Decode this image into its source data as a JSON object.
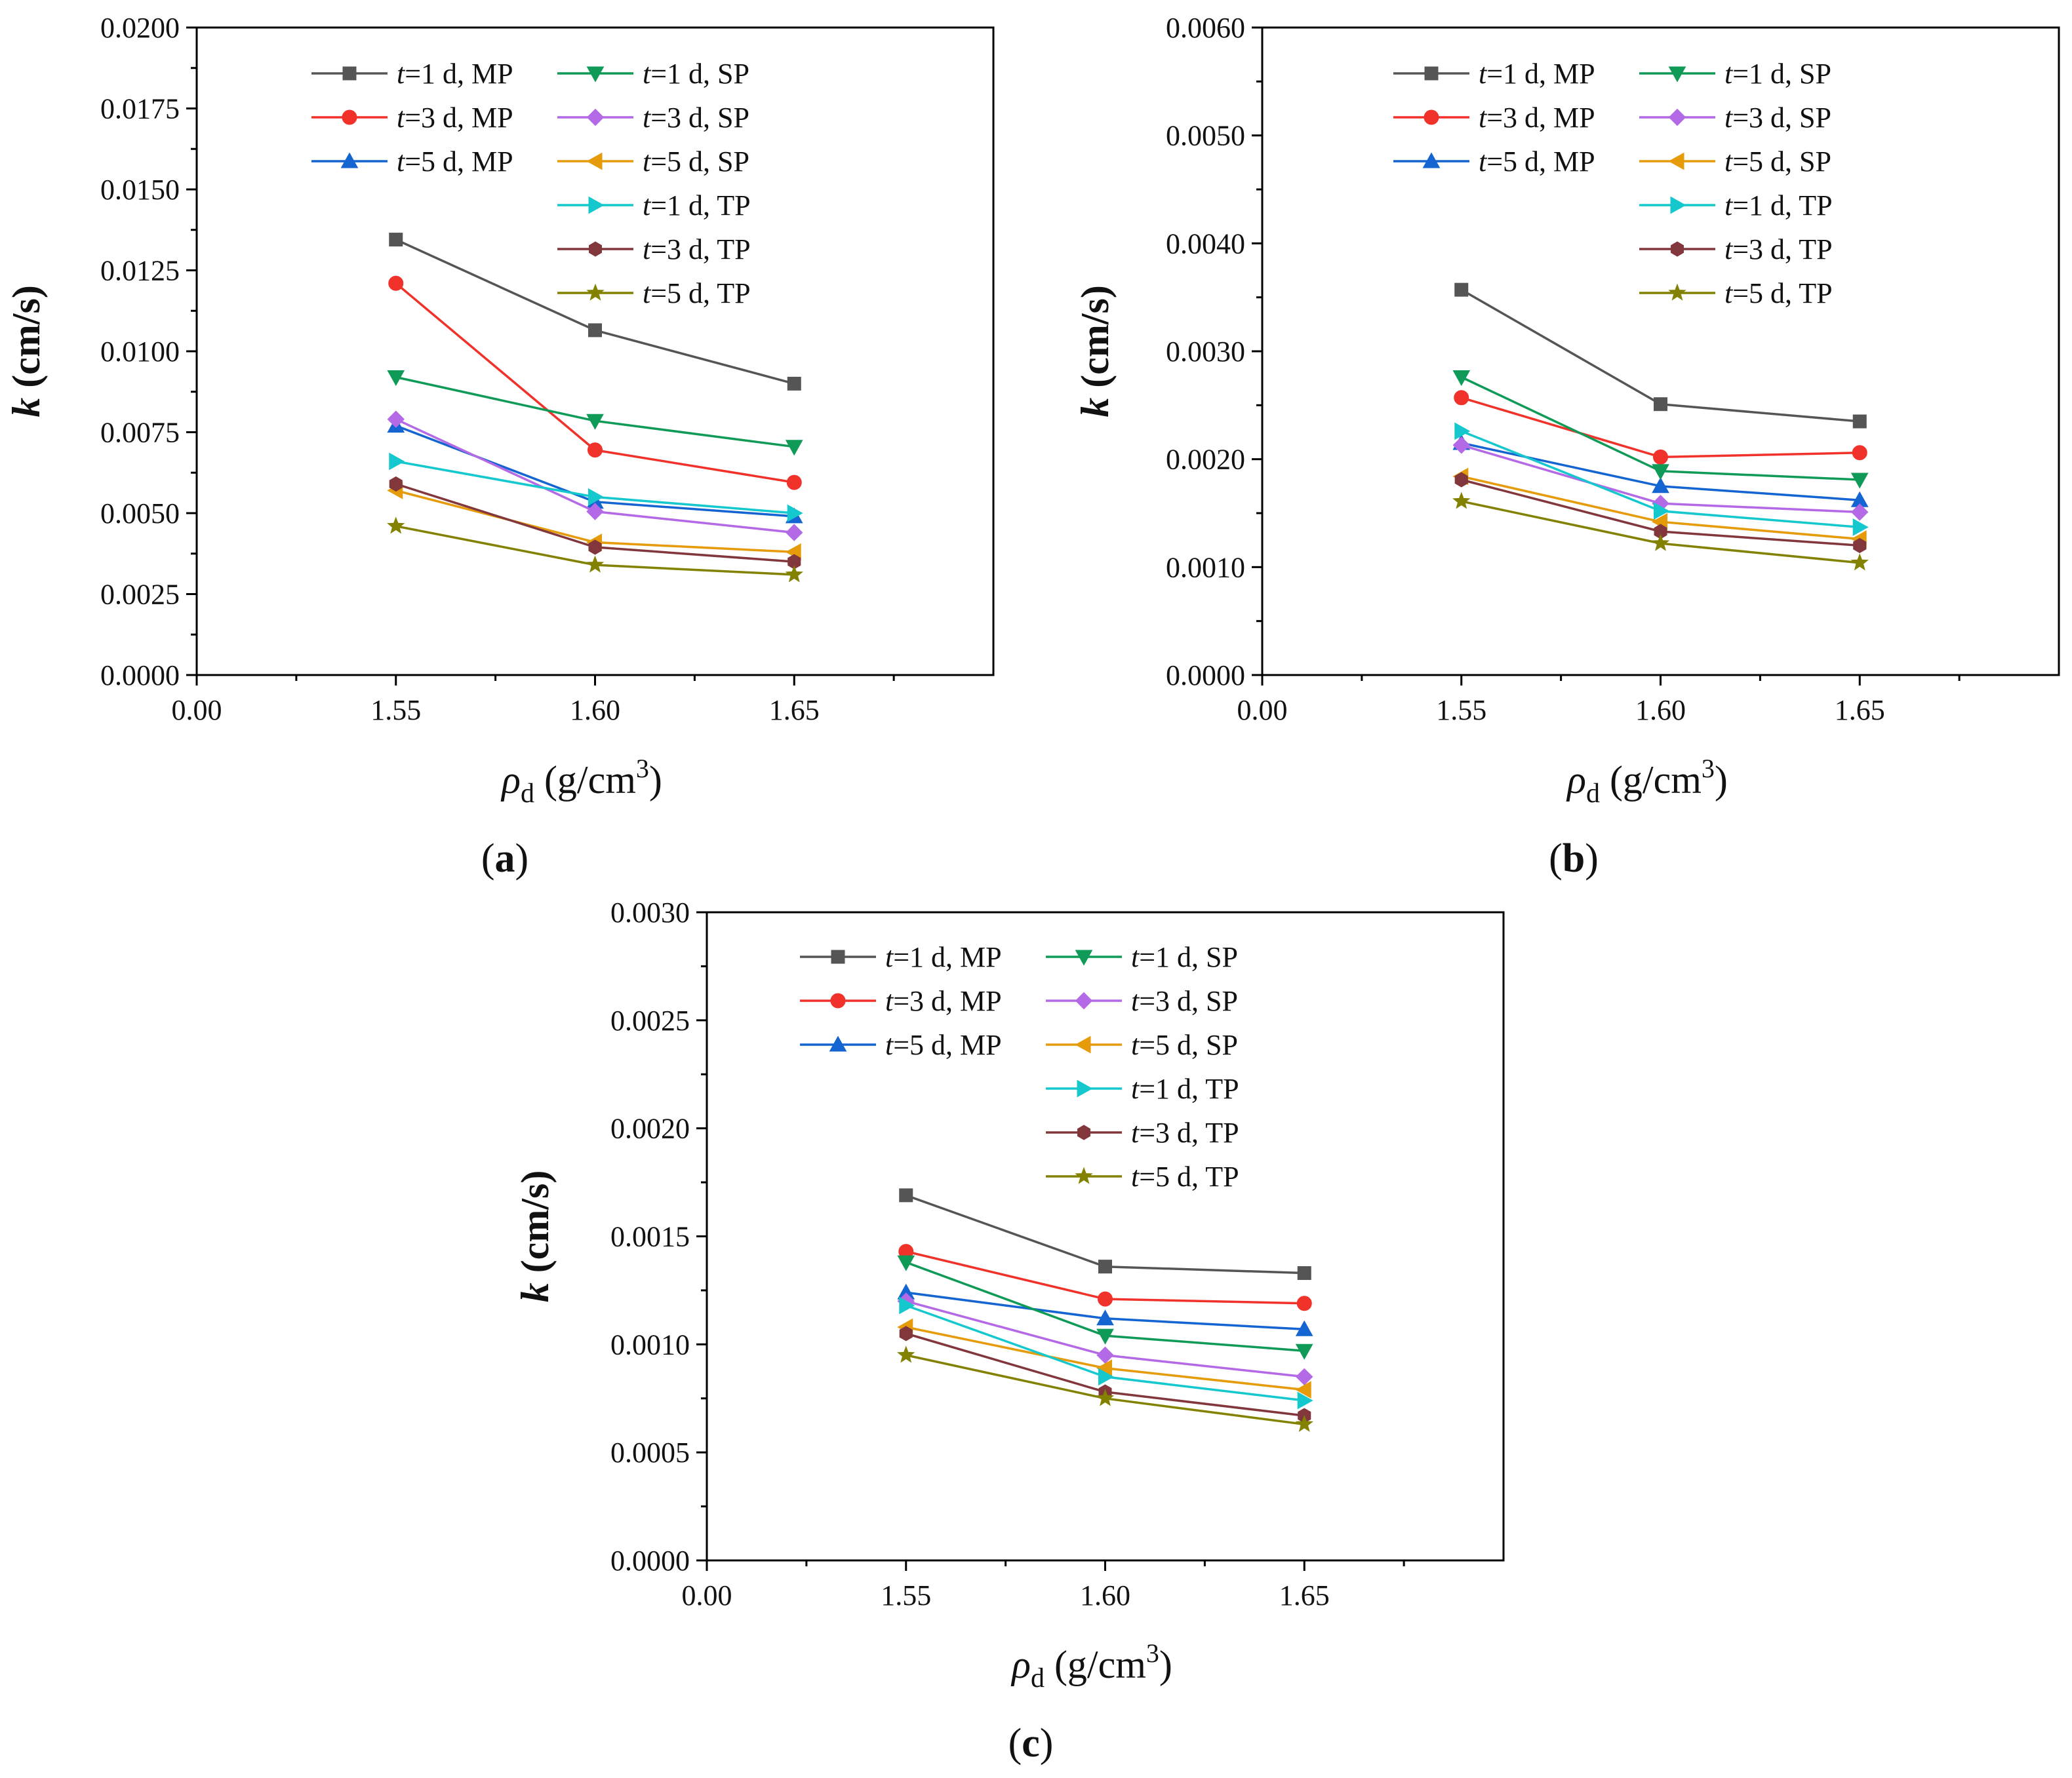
{
  "figure": {
    "panels": [
      {
        "id": "a",
        "label_open": "(",
        "label_letter": "a",
        "label_close": ")"
      },
      {
        "id": "b",
        "label_open": "(",
        "label_letter": "b",
        "label_close": ")"
      },
      {
        "id": "c",
        "label_open": "(",
        "label_letter": "c",
        "label_close": ")"
      }
    ],
    "axis_labels": {
      "y_symbol": "k",
      "y_unit": " (cm/s)",
      "x_symbol": "ρ",
      "x_subscript": "d",
      "x_unit": " (g/cm",
      "x_unit_sup": "3",
      "x_unit_close": ")"
    },
    "legend_labels": [
      {
        "t": "t",
        "rest": "=1 d, MP"
      },
      {
        "t": "t",
        "rest": "=3 d, MP"
      },
      {
        "t": "t",
        "rest": "=5 d, MP"
      },
      {
        "t": "t",
        "rest": "=1 d, SP"
      },
      {
        "t": "t",
        "rest": "=3 d, SP"
      },
      {
        "t": "t",
        "rest": "=5 d, SP"
      },
      {
        "t": "t",
        "rest": "=1 d, TP"
      },
      {
        "t": "t",
        "rest": "=3 d, TP"
      },
      {
        "t": "t",
        "rest": "=5 d, TP"
      }
    ]
  },
  "chart_data": [
    {
      "type": "line",
      "panel": "a",
      "x": [
        1.55,
        1.6,
        1.65
      ],
      "x_tick_labels": [
        "0.00",
        "1.55",
        "1.60",
        "1.65"
      ],
      "y_tick_labels": [
        "0.0000",
        "0.0025",
        "0.0050",
        "0.0075",
        "0.0100",
        "0.0125",
        "0.0150",
        "0.0175",
        "0.0200"
      ],
      "ylim": [
        0,
        0.02
      ],
      "xlabel": "ρd (g/cm3)",
      "ylabel": "k (cm/s)",
      "legend": "top-right",
      "grid": false,
      "series": [
        {
          "name": "t=1 d, MP",
          "color": "#555555",
          "marker": "square",
          "values": [
            0.01345,
            0.01065,
            0.009
          ]
        },
        {
          "name": "t=3 d, MP",
          "color": "#f0322a",
          "marker": "circle",
          "values": [
            0.0121,
            0.00695,
            0.00595
          ]
        },
        {
          "name": "t=5 d, MP",
          "color": "#1464d2",
          "marker": "triangle-up",
          "values": [
            0.0077,
            0.00535,
            0.0049
          ]
        },
        {
          "name": "t=1 d, SP",
          "color": "#0f9b57",
          "marker": "triangle-down",
          "values": [
            0.0092,
            0.00785,
            0.00705
          ]
        },
        {
          "name": "t=3 d, SP",
          "color": "#b469e6",
          "marker": "diamond",
          "values": [
            0.0079,
            0.00505,
            0.0044
          ]
        },
        {
          "name": "t=5 d, SP",
          "color": "#e69b0a",
          "marker": "triangle-left",
          "values": [
            0.0057,
            0.0041,
            0.0038
          ]
        },
        {
          "name": "t=1 d, TP",
          "color": "#14c8cd",
          "marker": "triangle-right",
          "values": [
            0.0066,
            0.0055,
            0.005
          ]
        },
        {
          "name": "t=3 d, TP",
          "color": "#82373c",
          "marker": "hexagon",
          "values": [
            0.0059,
            0.00395,
            0.0035
          ]
        },
        {
          "name": "t=5 d, TP",
          "color": "#828200",
          "marker": "star",
          "values": [
            0.0046,
            0.0034,
            0.0031
          ]
        }
      ]
    },
    {
      "type": "line",
      "panel": "b",
      "x": [
        1.55,
        1.6,
        1.65
      ],
      "x_tick_labels": [
        "0.00",
        "1.55",
        "1.60",
        "1.65"
      ],
      "y_tick_labels": [
        "0.0000",
        "0.0010",
        "0.0020",
        "0.0030",
        "0.0040",
        "0.0050",
        "0.0060"
      ],
      "ylim": [
        0,
        0.006
      ],
      "xlabel": "ρd (g/cm3)",
      "ylabel": "k (cm/s)",
      "legend": "top-right",
      "grid": false,
      "series": [
        {
          "name": "t=1 d, MP",
          "color": "#555555",
          "marker": "square",
          "values": [
            0.00357,
            0.00251,
            0.00235
          ]
        },
        {
          "name": "t=3 d, MP",
          "color": "#f0322a",
          "marker": "circle",
          "values": [
            0.00257,
            0.00202,
            0.00206
          ]
        },
        {
          "name": "t=5 d, MP",
          "color": "#1464d2",
          "marker": "triangle-up",
          "values": [
            0.00215,
            0.00175,
            0.00162
          ]
        },
        {
          "name": "t=1 d, SP",
          "color": "#0f9b57",
          "marker": "triangle-down",
          "values": [
            0.00276,
            0.00189,
            0.00181
          ]
        },
        {
          "name": "t=3 d, SP",
          "color": "#b469e6",
          "marker": "diamond",
          "values": [
            0.00213,
            0.00159,
            0.00151
          ]
        },
        {
          "name": "t=5 d, SP",
          "color": "#e69b0a",
          "marker": "triangle-left",
          "values": [
            0.00184,
            0.00142,
            0.00126
          ]
        },
        {
          "name": "t=1 d, TP",
          "color": "#14c8cd",
          "marker": "triangle-right",
          "values": [
            0.00226,
            0.00152,
            0.00137
          ]
        },
        {
          "name": "t=3 d, TP",
          "color": "#82373c",
          "marker": "hexagon",
          "values": [
            0.00181,
            0.00133,
            0.0012
          ]
        },
        {
          "name": "t=5 d, TP",
          "color": "#828200",
          "marker": "star",
          "values": [
            0.00161,
            0.00122,
            0.00104
          ]
        }
      ]
    },
    {
      "type": "line",
      "panel": "c",
      "x": [
        1.55,
        1.6,
        1.65
      ],
      "x_tick_labels": [
        "0.00",
        "1.55",
        "1.60",
        "1.65"
      ],
      "y_tick_labels": [
        "0.0000",
        "0.0005",
        "0.0010",
        "0.0015",
        "0.0020",
        "0.0025",
        "0.0030"
      ],
      "ylim": [
        0,
        0.003
      ],
      "xlabel": "ρd (g/cm3)",
      "ylabel": "k (cm/s)",
      "legend": "top-right",
      "grid": false,
      "series": [
        {
          "name": "t=1 d, MP",
          "color": "#555555",
          "marker": "square",
          "values": [
            0.00169,
            0.00136,
            0.00133
          ]
        },
        {
          "name": "t=3 d, MP",
          "color": "#f0322a",
          "marker": "circle",
          "values": [
            0.00143,
            0.00121,
            0.00119
          ]
        },
        {
          "name": "t=5 d, MP",
          "color": "#1464d2",
          "marker": "triangle-up",
          "values": [
            0.00124,
            0.00112,
            0.00107
          ]
        },
        {
          "name": "t=1 d, SP",
          "color": "#0f9b57",
          "marker": "triangle-down",
          "values": [
            0.00138,
            0.00104,
            0.00097
          ]
        },
        {
          "name": "t=3 d, SP",
          "color": "#b469e6",
          "marker": "diamond",
          "values": [
            0.0012,
            0.00095,
            0.00085
          ]
        },
        {
          "name": "t=5 d, SP",
          "color": "#e69b0a",
          "marker": "triangle-left",
          "values": [
            0.00108,
            0.00089,
            0.00079
          ]
        },
        {
          "name": "t=1 d, TP",
          "color": "#14c8cd",
          "marker": "triangle-right",
          "values": [
            0.00118,
            0.00085,
            0.00074
          ]
        },
        {
          "name": "t=3 d, TP",
          "color": "#82373c",
          "marker": "hexagon",
          "values": [
            0.00105,
            0.00078,
            0.00067
          ]
        },
        {
          "name": "t=5 d, TP",
          "color": "#828200",
          "marker": "star",
          "values": [
            0.00095,
            0.00075,
            0.00063
          ]
        }
      ]
    }
  ]
}
